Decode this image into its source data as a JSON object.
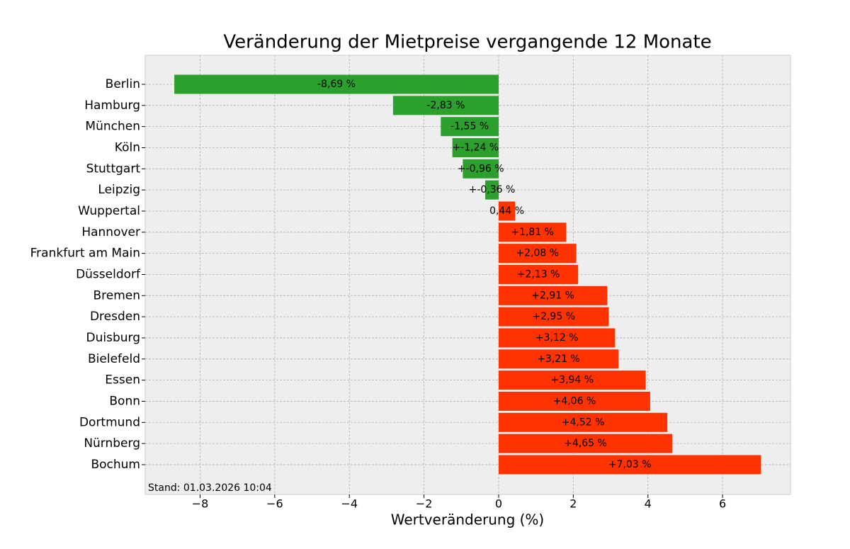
{
  "chart_data": {
    "type": "barh",
    "title": "Veränderung der Mietpreise vergangende 12 Monate",
    "xlabel": "Wertveränderung (%)",
    "annotation": "Stand: 01.03.2026 10:04",
    "categories": [
      "Berlin",
      "Hamburg",
      "München",
      "Köln",
      "Stuttgart",
      "Leipzig",
      "Wuppertal",
      "Hannover",
      "Frankfurt am Main",
      "Düsseldorf",
      "Bremen",
      "Dresden",
      "Duisburg",
      "Bielefeld",
      "Essen",
      "Bonn",
      "Dortmund",
      "Nürnberg",
      "Bochum"
    ],
    "values": [
      -8.69,
      -2.83,
      -1.55,
      -1.24,
      -0.96,
      -0.36,
      0.44,
      1.81,
      2.08,
      2.13,
      2.91,
      2.95,
      3.12,
      3.21,
      3.94,
      4.06,
      4.52,
      4.65,
      7.03
    ],
    "value_labels": [
      "-8,69 %",
      "-2,83 %",
      "-1,55 %",
      "+-1,24 %",
      "+-0,96 %",
      "+-0,36 %",
      "0,44 %",
      "+1,81 %",
      "+2,08 %",
      "+2,13 %",
      "+2,91 %",
      "+2,95 %",
      "+3,12 %",
      "+3,21 %",
      "+3,94 %",
      "+4,06 %",
      "+4,52 %",
      "+4,65 %",
      "+7,03 %"
    ],
    "negative_color": "#2ca02c",
    "positive_color": "#ff3300",
    "xlim": [
      -9.47,
      7.82
    ],
    "xticks": [
      {
        "value": -8,
        "label": "−8"
      },
      {
        "value": -6,
        "label": "−6"
      },
      {
        "value": -4,
        "label": "−4"
      },
      {
        "value": -2,
        "label": "−2"
      },
      0,
      2,
      4,
      6
    ],
    "grid": true
  }
}
